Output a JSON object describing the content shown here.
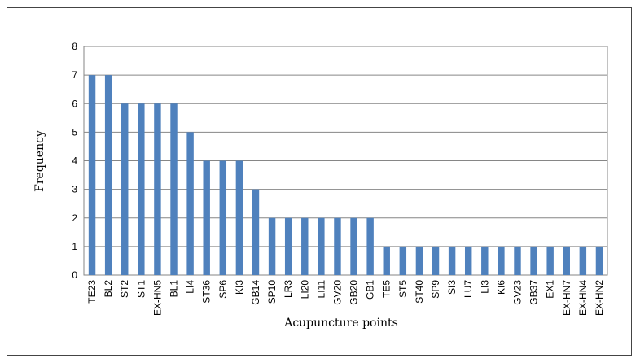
{
  "chart_data": {
    "type": "bar",
    "title": "",
    "xlabel": "Acupuncture points",
    "ylabel": "Frequency",
    "ylim": [
      0,
      8
    ],
    "yticks": [
      "0",
      "1",
      "2",
      "3",
      "4",
      "5",
      "6",
      "7",
      "8"
    ],
    "grid": true,
    "bar_color": "#4f81bd",
    "categories": [
      "TE23",
      "BL2",
      "ST2",
      "ST1",
      "EX-HN5",
      "BL1",
      "LI4",
      "ST36",
      "SP6",
      "KI3",
      "GB14",
      "SP10",
      "LR3",
      "LI20",
      "LI11",
      "GV20",
      "GB20",
      "GB1",
      "TE5",
      "ST5",
      "ST40",
      "SP9",
      "SI3",
      "LU7",
      "LI3",
      "KI6",
      "GV23",
      "GB37",
      "EX1",
      "EX-HN7",
      "EX-HN4",
      "EX-HN2"
    ],
    "values": [
      7,
      7,
      6,
      6,
      6,
      6,
      5,
      4,
      4,
      4,
      3,
      2,
      2,
      2,
      2,
      2,
      2,
      2,
      1,
      1,
      1,
      1,
      1,
      1,
      1,
      1,
      1,
      1,
      1,
      1,
      1,
      1
    ]
  }
}
